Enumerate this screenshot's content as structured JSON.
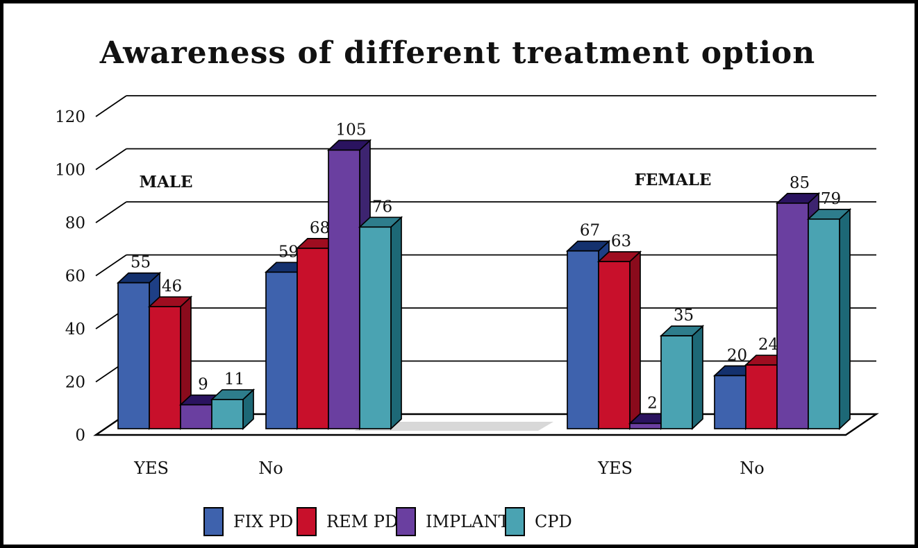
{
  "window": {
    "background": "#ffffff",
    "frame_border_color": "#000000",
    "floor_shadow_color": "#d8d8d8",
    "grid_color": "#000000"
  },
  "chart_data": {
    "type": "bar",
    "projection": "3d",
    "title": "Awareness of different treatment option",
    "xlabel": "",
    "ylabel": "",
    "ylim": [
      0,
      120
    ],
    "y_ticks": [
      "0",
      "20",
      "40",
      "60",
      "80",
      "100",
      "120"
    ],
    "grid": true,
    "legend_position": "bottom",
    "group_headers": [
      {
        "label": "MALE"
      },
      {
        "label": "FEMALE"
      }
    ],
    "categories": [
      "YES",
      "No",
      "YES",
      "No"
    ],
    "series": [
      {
        "name": "FIX PD",
        "color": "#3E62AD",
        "top_color": "#14316E",
        "side_color": "#1E3F85",
        "values": [
          55,
          59,
          67,
          20
        ]
      },
      {
        "name": "REM PD",
        "color": "#C8102B",
        "top_color": "#9E0D20",
        "side_color": "#8A0B1C",
        "values": [
          46,
          68,
          63,
          24
        ]
      },
      {
        "name": "IMPLANT",
        "color": "#6A3FA0",
        "top_color": "#2A135F",
        "side_color": "#3D2470",
        "values": [
          9,
          105,
          2,
          85
        ]
      },
      {
        "name": "CPD",
        "color": "#4AA3B2",
        "top_color": "#2E7D8C",
        "side_color": "#1D6876",
        "values": [
          11,
          76,
          35,
          79
        ]
      }
    ]
  }
}
